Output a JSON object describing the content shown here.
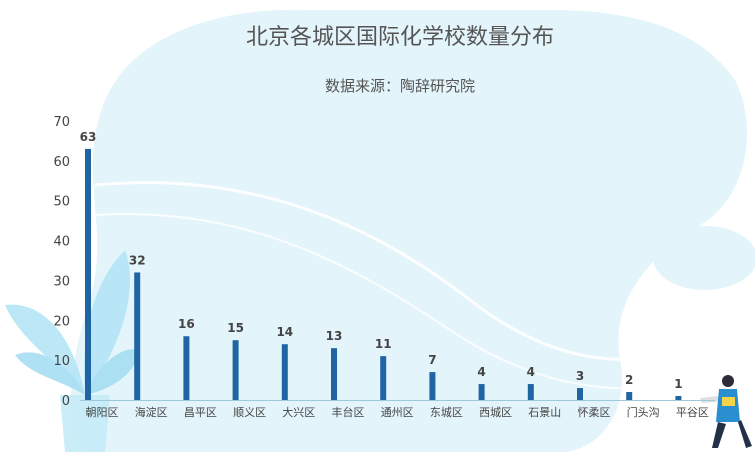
{
  "chart_data": {
    "type": "bar",
    "title": "北京各城区国际化学校数量分布",
    "subtitle": "数据来源：陶辞研究院",
    "xlabel": "",
    "ylabel": "",
    "categories": [
      "朝阳区",
      "海淀区",
      "昌平区",
      "顺义区",
      "大兴区",
      "丰台区",
      "通州区",
      "东城区",
      "西城区",
      "石景山",
      "怀柔区",
      "门头沟",
      "平谷区"
    ],
    "values": [
      63,
      32,
      16,
      15,
      14,
      13,
      11,
      7,
      4,
      4,
      3,
      2,
      1
    ],
    "ylim": [
      0,
      70
    ],
    "yticks": [
      0,
      10,
      20,
      30,
      40,
      50,
      60,
      70
    ],
    "grid": false,
    "legend": "none",
    "bar_color": "#1f64a3",
    "label_color": "#444444",
    "background_color": "#e3f4fa"
  }
}
